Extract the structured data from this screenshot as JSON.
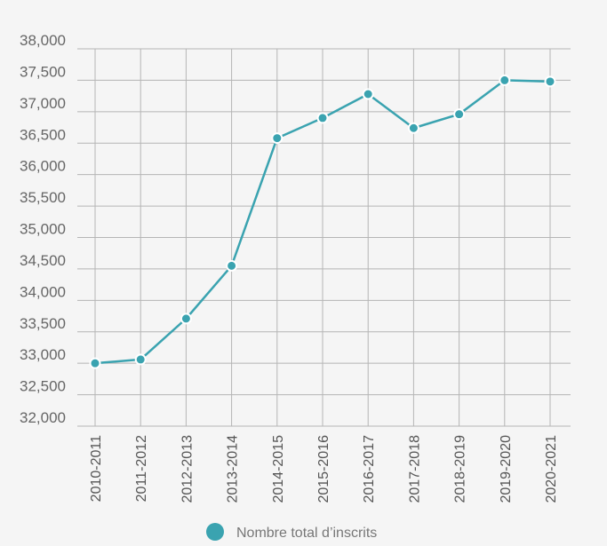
{
  "colors": {
    "series": "#3aa3b0",
    "grid": "#b5b5b5",
    "background": "#f5f5f5",
    "marker_edge": "#ffffff"
  },
  "chart_data": {
    "type": "line",
    "title": "",
    "xlabel": "",
    "ylabel": "",
    "ylim": [
      32000,
      38000
    ],
    "yticks": [
      32000,
      32500,
      33000,
      33500,
      34000,
      34500,
      35000,
      35500,
      36000,
      36500,
      37000,
      37500,
      38000
    ],
    "ytick_labels": [
      "32,000",
      "32,500",
      "33,000",
      "33,500",
      "34,000",
      "34,500",
      "35,000",
      "35,500",
      "36,000",
      "36,500",
      "37,000",
      "37,500",
      "38,000"
    ],
    "categories": [
      "2010-2011",
      "2011-2012",
      "2012-2013",
      "2013-2014",
      "2014-2015",
      "2015-2016",
      "2016-2017",
      "2017-2018",
      "2018-2019",
      "2019-2020",
      "2020-2021"
    ],
    "grid": true,
    "legend_position": "bottom",
    "series": [
      {
        "name": "Nombre total d’inscrits",
        "values": [
          33000,
          33060,
          33710,
          34550,
          36580,
          36900,
          37280,
          36740,
          36960,
          37500,
          37480
        ]
      }
    ]
  }
}
